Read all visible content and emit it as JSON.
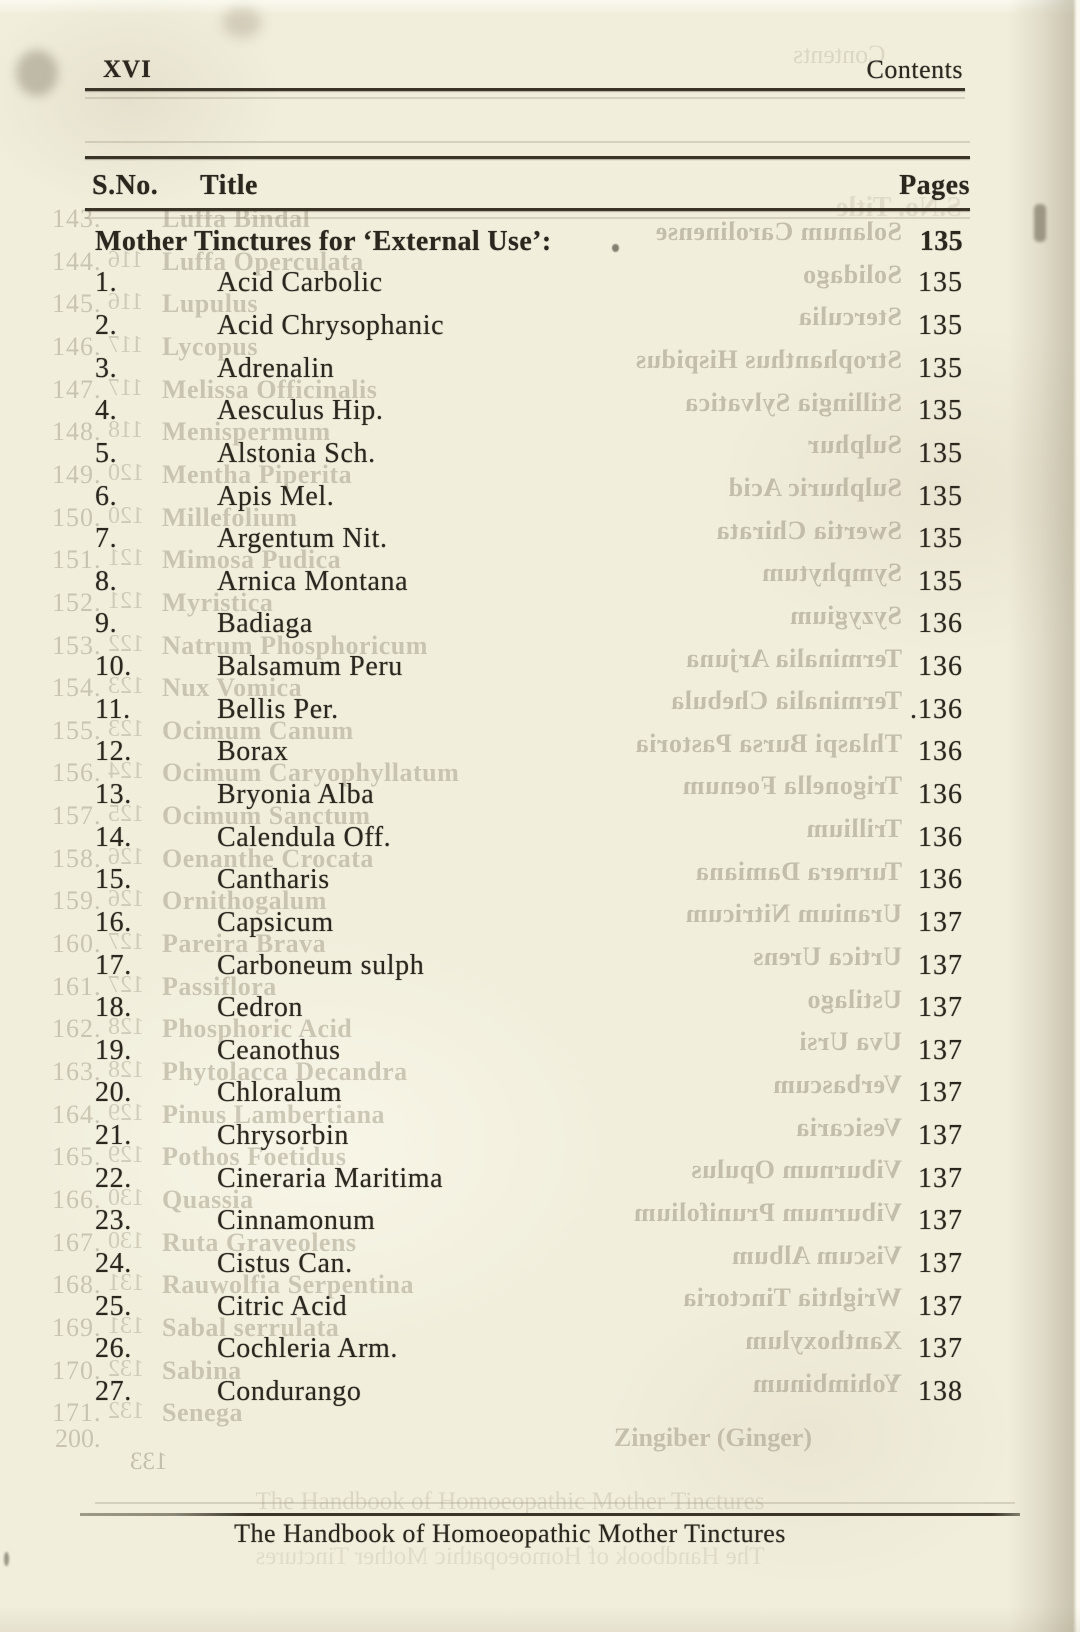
{
  "page": {
    "folio": "XVI",
    "running_header": "Contents",
    "footer": "The Handbook of Homoeopathic Mother Tinctures"
  },
  "colors": {
    "paper": "#f1eedc",
    "ink": "#2b261e",
    "rule": "#3a3429",
    "bleed_ghost": "#8f8872"
  },
  "table": {
    "headers": {
      "sno": "S.No.",
      "title": "Title",
      "pages": "Pages"
    },
    "section": {
      "title": "Mother Tinctures for ‘External Use’:",
      "page": "135"
    },
    "items": [
      {
        "no": "1.",
        "title": "Acid Carbolic",
        "page": "135"
      },
      {
        "no": "2.",
        "title": "Acid Chrysophanic",
        "page": "135"
      },
      {
        "no": "3.",
        "title": "Adrenalin",
        "page": "135"
      },
      {
        "no": "4.",
        "title": "Aesculus Hip.",
        "page": "135"
      },
      {
        "no": "5.",
        "title": "Alstonia Sch.",
        "page": "135"
      },
      {
        "no": "6.",
        "title": "Apis Mel.",
        "page": "135"
      },
      {
        "no": "7.",
        "title": "Argentum Nit.",
        "page": "135"
      },
      {
        "no": "8.",
        "title": "Arnica Montana",
        "page": "135"
      },
      {
        "no": "9.",
        "title": "Badiaga",
        "page": "136"
      },
      {
        "no": "10.",
        "title": "Balsamum Peru",
        "page": "136"
      },
      {
        "no": "11.",
        "title": "Bellis Per.",
        "page": ".136"
      },
      {
        "no": "12.",
        "title": "Borax",
        "page": "136"
      },
      {
        "no": "13.",
        "title": "Bryonia Alba",
        "page": "136"
      },
      {
        "no": "14.",
        "title": "Calendula Off.",
        "page": "136"
      },
      {
        "no": "15.",
        "title": "Cantharis",
        "page": "136"
      },
      {
        "no": "16.",
        "title": "Capsicum",
        "page": "137"
      },
      {
        "no": "17.",
        "title": "Carboneum sulph",
        "page": "137"
      },
      {
        "no": "18.",
        "title": "Cedron",
        "page": "137"
      },
      {
        "no": "19.",
        "title": "Ceanothus",
        "page": "137"
      },
      {
        "no": "20.",
        "title": "Chloralum",
        "page": "137"
      },
      {
        "no": "21.",
        "title": "Chrysorbin",
        "page": "137"
      },
      {
        "no": "22.",
        "title": "Cineraria Maritima",
        "page": "137"
      },
      {
        "no": "23.",
        "title": "Cinnamonum",
        "page": "137"
      },
      {
        "no": "24.",
        "title": "Cistus Can.",
        "page": "137"
      },
      {
        "no": "25.",
        "title": "Citric Acid",
        "page": "137"
      },
      {
        "no": "26.",
        "title": "Cochleria Arm.",
        "page": "137"
      },
      {
        "no": "27.",
        "title": "Condurango",
        "page": "138"
      }
    ]
  },
  "bleedthrough": {
    "header_ghost": "Contents",
    "table_header_ghost": "S.No.  Title",
    "left_entries": [
      {
        "no": "143.",
        "ghost_page": "",
        "title": "Luffa Bindal"
      },
      {
        "no": "144.",
        "ghost_page": "116",
        "title": "Luffa Operculata"
      },
      {
        "no": "145.",
        "ghost_page": "116",
        "title": "Lupulus"
      },
      {
        "no": "146.",
        "ghost_page": "117",
        "title": "Lycopus"
      },
      {
        "no": "147.",
        "ghost_page": "117",
        "title": "Melissa Officinalis"
      },
      {
        "no": "148.",
        "ghost_page": "118",
        "title": "Menispermum"
      },
      {
        "no": "149.",
        "ghost_page": "120",
        "title": "Mentha Piperita"
      },
      {
        "no": "150.",
        "ghost_page": "120",
        "title": "Millefolium"
      },
      {
        "no": "151.",
        "ghost_page": "121",
        "title": "Mimosa Pudica"
      },
      {
        "no": "152.",
        "ghost_page": "121",
        "title": "Myristica"
      },
      {
        "no": "153.",
        "ghost_page": "122",
        "title": "Natrum Phosphoricum"
      },
      {
        "no": "154.",
        "ghost_page": "123",
        "title": "Nux Vomica"
      },
      {
        "no": "155.",
        "ghost_page": "123",
        "title": "Ocimum Canum"
      },
      {
        "no": "156.",
        "ghost_page": "124",
        "title": "Ocimum Caryophyllatum"
      },
      {
        "no": "157.",
        "ghost_page": "125",
        "title": "Ocimum Sanctum"
      },
      {
        "no": "158.",
        "ghost_page": "126",
        "title": "Oenanthe Crocata"
      },
      {
        "no": "159.",
        "ghost_page": "126",
        "title": "Ornithogalum"
      },
      {
        "no": "160.",
        "ghost_page": "127",
        "title": "Pareira Brava"
      },
      {
        "no": "161.",
        "ghost_page": "127",
        "title": "Passiflora"
      },
      {
        "no": "162.",
        "ghost_page": "128",
        "title": "Phosphoric Acid"
      },
      {
        "no": "163.",
        "ghost_page": "128",
        "title": "Phytolacca Decandra"
      },
      {
        "no": "164.",
        "ghost_page": "129",
        "title": "Pinus Lambertiana"
      },
      {
        "no": "165.",
        "ghost_page": "129",
        "title": "Pothos Foetidus"
      },
      {
        "no": "166.",
        "ghost_page": "130",
        "title": "Quassia"
      },
      {
        "no": "167.",
        "ghost_page": "130",
        "title": "Ruta Graveolens"
      },
      {
        "no": "168.",
        "ghost_page": "131",
        "title": "Rauwolfia Serpentina"
      },
      {
        "no": "169.",
        "ghost_page": "131",
        "title": "Sabal serrulata"
      },
      {
        "no": "170.",
        "ghost_page": "132",
        "title": "Sabina"
      },
      {
        "no": "171.",
        "ghost_page": "132",
        "title": "Senega"
      }
    ],
    "right_titles": [
      "Solanum Carolinense",
      "Solidago",
      "Sterculia",
      "Strophanthus Hispidus",
      "Stillingia Sylvatica",
      "Sulphur",
      "Sulphuric Acid",
      "Swertia Chirata",
      "Symphytum",
      "Syzygium",
      "Terminalia Arjuna",
      "Terminalia Chebula",
      "Thlaspi Bursa Pastoria",
      "Trigonella Foenum",
      "Trillium",
      "Turnera Damiana",
      "Uranium Nitricum",
      "Urtica Urens",
      "Ustilago",
      "Uva Ursi",
      "Verbascum",
      "Vesicaria",
      "Viburnum Opulus",
      "Viburnum Prunifolium",
      "Viscum Album",
      "Wrightia Tinctoria",
      "Xanthoxylum",
      "Yohimbinum"
    ],
    "bottom_entry": {
      "no": "200.",
      "title": "Zingiber (Ginger)",
      "page": "133"
    }
  }
}
